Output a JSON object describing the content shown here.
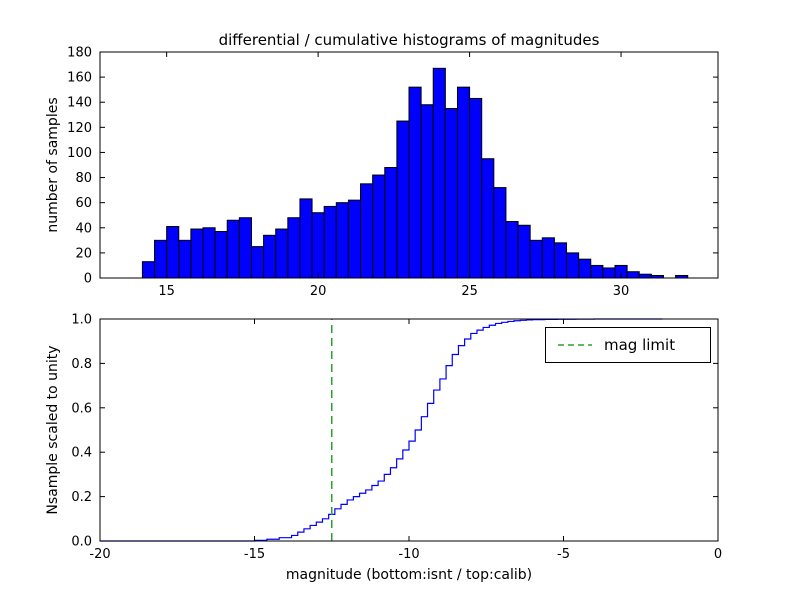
{
  "chart_data": [
    {
      "type": "bar",
      "name": "differential-histogram-top",
      "title": "differential / cumulative histograms of magnitudes",
      "xlabel": "",
      "ylabel": "number of samples",
      "xlim": [
        12.8,
        33.2
      ],
      "ylim": [
        0,
        180
      ],
      "xticks": [
        15,
        20,
        25,
        30
      ],
      "yticks": [
        0,
        20,
        40,
        60,
        80,
        100,
        120,
        140,
        160,
        180
      ],
      "grid": false,
      "bin_start": 14.2,
      "bin_width": 0.4,
      "counts": [
        13,
        30,
        41,
        30,
        39,
        40,
        37,
        46,
        48,
        25,
        34,
        39,
        48,
        63,
        52,
        57,
        60,
        62,
        75,
        82,
        88,
        125,
        152,
        138,
        167,
        135,
        152,
        143,
        95,
        72,
        45,
        42,
        30,
        32,
        28,
        20,
        15,
        10,
        8,
        10,
        5,
        3,
        2,
        0,
        2
      ],
      "bar_color": "#0000ff",
      "bar_edge_color": "#000000"
    },
    {
      "type": "line",
      "name": "cumulative-histogram-bottom",
      "xlabel": "magnitude (bottom:isnt / top:calib)",
      "ylabel": "Nsample scaled to unity",
      "xlim": [
        -20,
        0
      ],
      "ylim": [
        0,
        1
      ],
      "xticks": [
        -20,
        -15,
        -10,
        -5,
        0
      ],
      "yticks": [
        0,
        0.2,
        0.4,
        0.6,
        0.8,
        1.0
      ],
      "ytick_labels": [
        "0.0",
        "0.2",
        "0.4",
        "0.6",
        "0.8",
        "1.0"
      ],
      "grid": false,
      "line_color": "#0000ff",
      "line_style": "step",
      "step_points": [
        [
          -15.0,
          0.003
        ],
        [
          -14.6,
          0.008
        ],
        [
          -14.2,
          0.015
        ],
        [
          -13.8,
          0.025
        ],
        [
          -13.6,
          0.04
        ],
        [
          -13.4,
          0.055
        ],
        [
          -13.2,
          0.07
        ],
        [
          -13.0,
          0.085
        ],
        [
          -12.8,
          0.1
        ],
        [
          -12.6,
          0.12
        ],
        [
          -12.4,
          0.145
        ],
        [
          -12.2,
          0.165
        ],
        [
          -12.0,
          0.185
        ],
        [
          -11.8,
          0.2
        ],
        [
          -11.6,
          0.215
        ],
        [
          -11.4,
          0.23
        ],
        [
          -11.2,
          0.25
        ],
        [
          -11.0,
          0.27
        ],
        [
          -10.8,
          0.3
        ],
        [
          -10.6,
          0.33
        ],
        [
          -10.4,
          0.37
        ],
        [
          -10.2,
          0.41
        ],
        [
          -10.0,
          0.45
        ],
        [
          -9.8,
          0.5
        ],
        [
          -9.6,
          0.56
        ],
        [
          -9.4,
          0.62
        ],
        [
          -9.2,
          0.68
        ],
        [
          -9.0,
          0.73
        ],
        [
          -8.8,
          0.79
        ],
        [
          -8.6,
          0.84
        ],
        [
          -8.4,
          0.88
        ],
        [
          -8.2,
          0.91
        ],
        [
          -8.0,
          0.935
        ],
        [
          -7.8,
          0.95
        ],
        [
          -7.6,
          0.962
        ],
        [
          -7.4,
          0.972
        ],
        [
          -7.2,
          0.98
        ],
        [
          -7.0,
          0.985
        ],
        [
          -6.8,
          0.989
        ],
        [
          -6.6,
          0.992
        ],
        [
          -6.4,
          0.994
        ],
        [
          -6.2,
          0.996
        ],
        [
          -6.0,
          0.997
        ],
        [
          -5.6,
          0.998
        ],
        [
          -5.2,
          0.999
        ],
        [
          -4.6,
          0.9995
        ],
        [
          -4.0,
          1.0
        ],
        [
          -1.8,
          1.0
        ]
      ],
      "vline": {
        "x": -12.5,
        "color": "#2ca02c",
        "style": "dashed",
        "label": "mag limit"
      },
      "legend": {
        "label": "mag limit",
        "position": "upper right"
      }
    }
  ]
}
